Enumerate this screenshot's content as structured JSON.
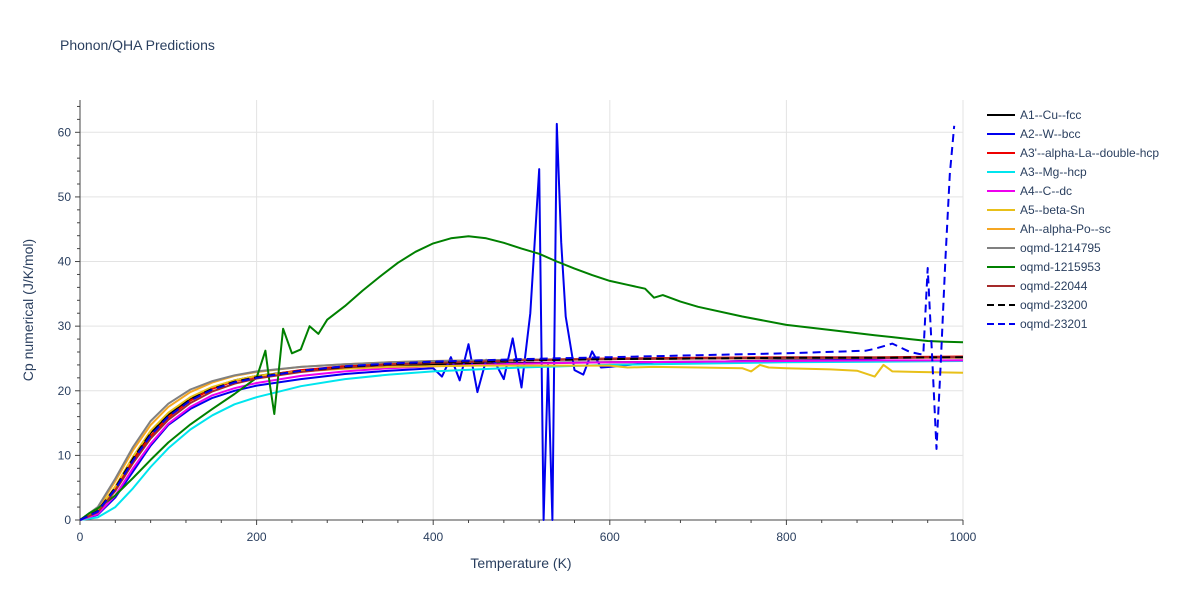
{
  "chart_data": {
    "type": "line",
    "title": "Phonon/QHA Predictions",
    "xlabel": "Temperature (K)",
    "ylabel": "Cp numerical (J/K/mol)",
    "xlim": [
      0,
      1000
    ],
    "ylim": [
      0,
      65
    ],
    "xticks": [
      0,
      200,
      400,
      600,
      800,
      1000
    ],
    "yticks": [
      0,
      10,
      20,
      30,
      40,
      50,
      60
    ],
    "grid": true,
    "legend_position": "right",
    "series": [
      {
        "name": "A1--Cu--fcc",
        "color": "#000000",
        "dash": "solid",
        "x": [
          0,
          20,
          40,
          60,
          80,
          100,
          125,
          150,
          175,
          200,
          250,
          300,
          350,
          400,
          500,
          600,
          700,
          800,
          900,
          1000
        ],
        "y": [
          0,
          1.5,
          5,
          9.5,
          13.5,
          16.3,
          18.8,
          20.5,
          21.6,
          22.3,
          23.1,
          23.6,
          23.9,
          24.1,
          24.3,
          24.4,
          24.5,
          24.6,
          24.6,
          24.7
        ]
      },
      {
        "name": "A2--W--bcc",
        "color": "#0000ee",
        "dash": "solid",
        "x": [
          0,
          20,
          40,
          60,
          80,
          100,
          125,
          150,
          175,
          200,
          250,
          300,
          350,
          400,
          410,
          420,
          430,
          440,
          450,
          460,
          470,
          480,
          490,
          500,
          510,
          520,
          525,
          530,
          535,
          540,
          545,
          550,
          560,
          570,
          580,
          590,
          600,
          650,
          700,
          750,
          800,
          850,
          900,
          920,
          940,
          960,
          980,
          1000
        ],
        "y": [
          0,
          0.8,
          3.5,
          7.5,
          11.5,
          14.7,
          17.2,
          18.9,
          20.0,
          20.8,
          21.8,
          22.6,
          23.1,
          23.5,
          22.2,
          25.2,
          21.6,
          27.2,
          19.8,
          24.8,
          24.4,
          21.8,
          28.1,
          20.5,
          32,
          54.3,
          0,
          24,
          0,
          61.3,
          43,
          31.5,
          23.2,
          22.5,
          26.1,
          23.6,
          23.7,
          24.4,
          24.4,
          24.6,
          24.7,
          24.8,
          25.0,
          25.1,
          25.1,
          25.2,
          25.2,
          25.2
        ]
      },
      {
        "name": "A3'--alpha-La--double-hcp",
        "color": "#ee0000",
        "dash": "solid",
        "x": [
          0,
          20,
          40,
          60,
          80,
          100,
          125,
          150,
          175,
          200,
          250,
          300,
          350,
          400,
          500,
          600,
          700,
          800,
          900,
          1000
        ],
        "y": [
          0,
          1.3,
          4.8,
          9.2,
          13.0,
          15.9,
          18.5,
          20.3,
          21.5,
          22.2,
          23.2,
          23.8,
          24.2,
          24.5,
          24.8,
          25.0,
          25.1,
          25.2,
          25.2,
          25.3
        ]
      },
      {
        "name": "A3--Mg--hcp",
        "color": "#00e5ee",
        "dash": "solid",
        "x": [
          0,
          20,
          40,
          60,
          80,
          100,
          125,
          150,
          175,
          200,
          250,
          300,
          350,
          400,
          500,
          600,
          700,
          800,
          900,
          1000
        ],
        "y": [
          0,
          0.4,
          2.0,
          4.9,
          8.2,
          11.1,
          14.0,
          16.2,
          17.9,
          19.0,
          20.7,
          21.8,
          22.5,
          23.0,
          23.6,
          24.0,
          24.2,
          24.4,
          24.5,
          24.6
        ]
      },
      {
        "name": "A4--C--dc",
        "color": "#ee00ee",
        "dash": "solid",
        "x": [
          0,
          20,
          40,
          60,
          80,
          100,
          125,
          150,
          175,
          200,
          250,
          300,
          350,
          400,
          500,
          600,
          700,
          800,
          900,
          1000
        ],
        "y": [
          0,
          0.9,
          3.8,
          8.0,
          11.8,
          14.9,
          17.5,
          19.3,
          20.4,
          21.2,
          22.3,
          23.0,
          23.5,
          23.8,
          24.2,
          24.4,
          24.5,
          24.6,
          24.7,
          24.7
        ]
      },
      {
        "name": "A5--beta-Sn",
        "color": "#e8c019",
        "dash": "solid",
        "x": [
          0,
          20,
          40,
          60,
          80,
          100,
          125,
          150,
          175,
          200,
          250,
          300,
          350,
          400,
          450,
          500,
          550,
          600,
          620,
          650,
          700,
          750,
          760,
          770,
          780,
          800,
          850,
          880,
          900,
          910,
          920,
          950,
          1000
        ],
        "y": [
          0,
          1.4,
          5.2,
          9.8,
          13.8,
          16.6,
          19.0,
          20.6,
          21.6,
          22.3,
          23.0,
          23.4,
          23.7,
          23.8,
          23.9,
          23.9,
          23.9,
          23.9,
          23.6,
          23.7,
          23.6,
          23.5,
          23.0,
          24.0,
          23.6,
          23.5,
          23.3,
          23.1,
          22.2,
          24.0,
          23.0,
          22.9,
          22.8
        ]
      },
      {
        "name": "Ah--alpha-Po--sc",
        "color": "#f5a623",
        "dash": "solid",
        "x": [
          0,
          20,
          40,
          60,
          80,
          100,
          125,
          150,
          175,
          200,
          250,
          300,
          350,
          400,
          500,
          600,
          700,
          800,
          900,
          1000
        ],
        "y": [
          0,
          1.8,
          6.0,
          10.8,
          14.7,
          17.5,
          19.8,
          21.3,
          22.3,
          22.9,
          23.7,
          24.1,
          24.4,
          24.6,
          24.8,
          24.9,
          25.0,
          25.0,
          25.1,
          25.1
        ]
      },
      {
        "name": "oqmd-1214795",
        "color": "#808080",
        "dash": "solid",
        "x": [
          0,
          20,
          40,
          60,
          80,
          100,
          125,
          150,
          175,
          200,
          250,
          300,
          350,
          400,
          500,
          600,
          700,
          800,
          900,
          1000
        ],
        "y": [
          0,
          2.0,
          6.4,
          11.3,
          15.3,
          18.0,
          20.2,
          21.5,
          22.4,
          23.0,
          23.7,
          24.1,
          24.4,
          24.6,
          24.8,
          24.9,
          25.0,
          25.1,
          25.1,
          25.2
        ]
      },
      {
        "name": "oqmd-1215953",
        "color": "#008000",
        "dash": "solid",
        "x": [
          0,
          10,
          20,
          40,
          60,
          80,
          100,
          125,
          150,
          175,
          200,
          210,
          215,
          220,
          230,
          240,
          250,
          260,
          270,
          280,
          300,
          320,
          340,
          360,
          380,
          400,
          420,
          440,
          460,
          480,
          500,
          520,
          540,
          560,
          580,
          600,
          620,
          640,
          650,
          660,
          680,
          700,
          750,
          800,
          850,
          900,
          920,
          940,
          960,
          980,
          1000
        ],
        "y": [
          0,
          1.0,
          1.8,
          3.8,
          6.5,
          9.3,
          12.0,
          14.8,
          17.2,
          19.5,
          22.0,
          26.2,
          21.0,
          16.4,
          29.6,
          25.8,
          26.4,
          30.0,
          28.8,
          31.0,
          33.1,
          35.5,
          37.7,
          39.8,
          41.5,
          42.8,
          43.6,
          43.9,
          43.6,
          42.9,
          42.0,
          41.2,
          40.0,
          38.9,
          37.9,
          37.0,
          36.4,
          35.8,
          34.4,
          34.8,
          33.8,
          33.0,
          31.5,
          30.2,
          29.4,
          28.6,
          28.3,
          28.0,
          27.7,
          27.6,
          27.5
        ]
      },
      {
        "name": "oqmd-22044",
        "color": "#a52a2a",
        "dash": "solid",
        "x": [
          0,
          20,
          40,
          60,
          80,
          100,
          125,
          150,
          175,
          200,
          250,
          300,
          350,
          400,
          500,
          600,
          700,
          800,
          900,
          1000
        ],
        "y": [
          0,
          1.2,
          4.5,
          8.8,
          12.6,
          15.5,
          18.1,
          19.9,
          21.1,
          21.9,
          22.9,
          23.6,
          24.0,
          24.3,
          24.7,
          24.9,
          25.0,
          25.1,
          25.1,
          25.2
        ]
      },
      {
        "name": "oqmd-23200",
        "color": "#000000",
        "dash": "dash",
        "x": [
          0,
          20,
          40,
          60,
          80,
          100,
          125,
          150,
          175,
          200,
          250,
          300,
          350,
          400,
          500,
          600,
          700,
          800,
          900,
          1000
        ],
        "y": [
          0,
          1.4,
          5.0,
          9.5,
          13.4,
          16.2,
          18.7,
          20.3,
          21.4,
          22.1,
          23.1,
          23.7,
          24.1,
          24.4,
          24.7,
          24.9,
          25.0,
          25.1,
          25.1,
          25.2
        ]
      },
      {
        "name": "oqmd-23201",
        "color": "#0000ee",
        "dash": "dash",
        "x": [
          0,
          20,
          40,
          60,
          80,
          100,
          125,
          150,
          175,
          200,
          250,
          300,
          350,
          400,
          500,
          600,
          700,
          800,
          890,
          900,
          920,
          940,
          950,
          955,
          960,
          965,
          970,
          975,
          980,
          985,
          990
        ],
        "y": [
          0,
          1.3,
          4.8,
          9.2,
          13.1,
          16.0,
          18.5,
          20.2,
          21.3,
          22.0,
          23.1,
          23.8,
          24.2,
          24.5,
          24.9,
          25.2,
          25.5,
          25.8,
          26.2,
          26.5,
          27.3,
          26.0,
          25.7,
          25.6,
          39.0,
          25.4,
          11.0,
          24.8,
          40.0,
          53.5,
          61.0
        ]
      }
    ]
  }
}
